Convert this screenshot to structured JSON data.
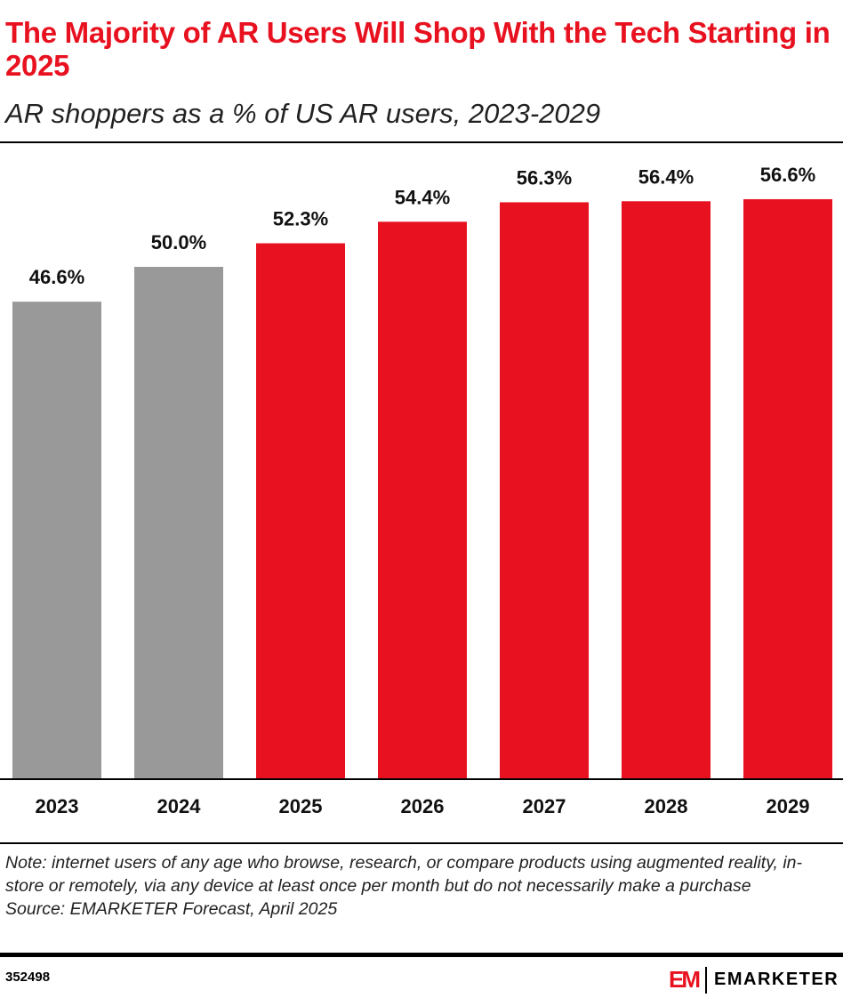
{
  "title": "The Majority of AR Users Will Shop With the Tech Starting in 2025",
  "subtitle": "AR shoppers as a % of US AR users, 2023-2029",
  "note": "Note: internet users of any age who browse, research, or compare products using augmented reality, in-store or remotely, via any device at least once per month but do not necessarily make a purchase",
  "source": "Source: EMARKETER Forecast, April 2025",
  "chart_id": "352498",
  "logo": {
    "mark": "EM",
    "brand": "EMARKETER"
  },
  "colors": {
    "historical": "#999999",
    "forecast": "#e8111f",
    "title": "#e8111f"
  },
  "chart_data": {
    "type": "bar",
    "title": "The Majority of AR Users Will Shop With the Tech Starting in 2025",
    "subtitle": "AR shoppers as a % of US AR users, 2023-2029",
    "categories": [
      "2023",
      "2024",
      "2025",
      "2026",
      "2027",
      "2028",
      "2029"
    ],
    "values": [
      46.6,
      50.0,
      52.3,
      54.4,
      56.3,
      56.4,
      56.6
    ],
    "labels": [
      "46.6%",
      "50.0%",
      "52.3%",
      "54.4%",
      "56.3%",
      "56.4%",
      "56.6%"
    ],
    "forecast": [
      false,
      false,
      true,
      true,
      true,
      true,
      true
    ],
    "ylim": [
      0,
      56.6
    ],
    "grid": false,
    "xlabel": "",
    "ylabel": ""
  }
}
